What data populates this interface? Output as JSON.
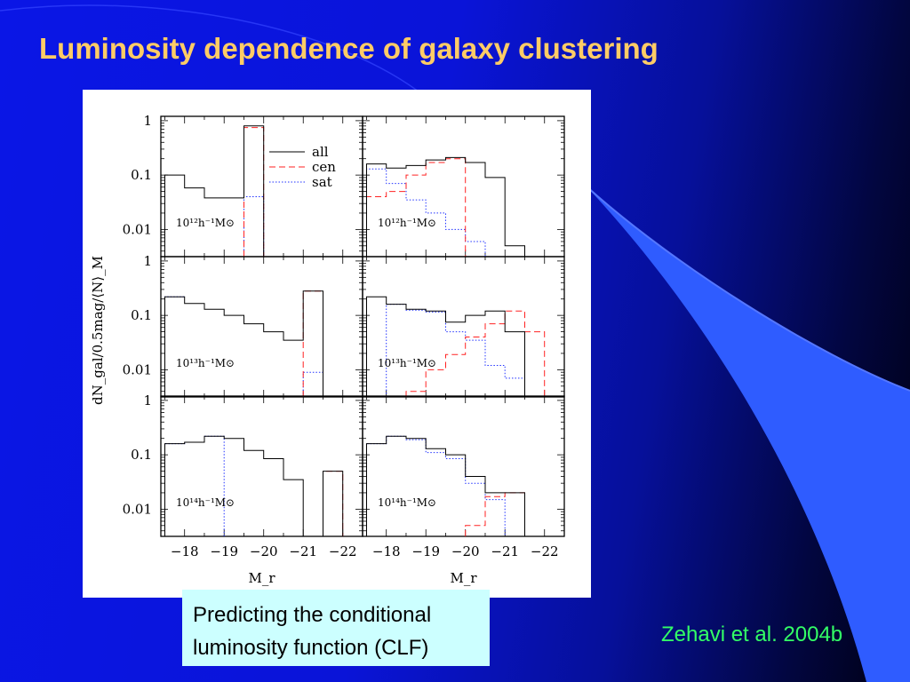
{
  "slide": {
    "title": "Luminosity dependence of galaxy clustering",
    "caption_lines": [
      "Predicting the conditional",
      "luminosity function (CLF)"
    ],
    "citation": "Zehavi et al. 2004b",
    "colors": {
      "title": "#ffcc66",
      "citation": "#33ff66",
      "caption_bg": "#ccffff",
      "background_left": "#0a16e6",
      "background_right": "#000010",
      "decor_band": "#3366ff"
    }
  },
  "chart_data": {
    "type": "histogram-grid",
    "y_axis_title": "dN_gal/0.5mag/⟨N⟩_M",
    "x_axis_title": "M_r",
    "x_ticks": [
      "−18",
      "−19",
      "−20",
      "−21",
      "−22"
    ],
    "y_ticks": [
      "1",
      "0.1",
      "0.01"
    ],
    "legend": [
      {
        "label": "all",
        "style": "solid",
        "color": "#000000"
      },
      {
        "label": "cen",
        "style": "dashed",
        "color": "#ff2222"
      },
      {
        "label": "sat",
        "style": "dotted",
        "color": "#2233ff"
      }
    ],
    "x_range": [
      -17.4,
      -22.5
    ],
    "y_range_log10": [
      -2.5,
      0.08
    ],
    "panels": [
      {
        "mass": "10¹²h⁻¹M⊙",
        "all": [
          [
            -17.5,
            -18,
            0.1
          ],
          [
            -18,
            -18.5,
            0.058
          ],
          [
            -18.5,
            -19,
            0.038
          ],
          [
            -19,
            -19.5,
            0.038
          ],
          [
            -19.5,
            -20,
            0.8
          ]
        ],
        "cen": [
          [
            -19.5,
            -20,
            0.75
          ]
        ],
        "sat": [
          [
            -19.5,
            -20,
            0.04
          ]
        ]
      },
      {
        "mass": "10¹²h⁻¹M⊙",
        "all": [
          [
            -17.5,
            -18,
            0.16
          ],
          [
            -18,
            -18.5,
            0.135
          ],
          [
            -18.5,
            -19,
            0.15
          ],
          [
            -19,
            -19.5,
            0.19
          ],
          [
            -19.5,
            -20,
            0.21
          ],
          [
            -20,
            -20.5,
            0.17
          ],
          [
            -20.5,
            -21,
            0.09
          ],
          [
            -21,
            -21.5,
            0.005
          ]
        ],
        "cen": [
          [
            -17.5,
            -18,
            0.04
          ],
          [
            -18,
            -18.5,
            0.05
          ],
          [
            -18.5,
            -19,
            0.1
          ],
          [
            -19,
            -19.5,
            0.17
          ],
          [
            -19.5,
            -20,
            0.2
          ]
        ],
        "sat": [
          [
            -17.5,
            -18,
            0.13
          ],
          [
            -18,
            -18.5,
            0.07
          ],
          [
            -18.5,
            -19,
            0.035
          ],
          [
            -19,
            -19.5,
            0.02
          ],
          [
            -19.5,
            -20,
            0.01
          ],
          [
            -20,
            -20.5,
            0.006
          ]
        ]
      },
      {
        "mass": "10¹³h⁻¹M⊙",
        "all": [
          [
            -17.5,
            -18,
            0.22
          ],
          [
            -18,
            -18.5,
            0.165
          ],
          [
            -18.5,
            -19,
            0.13
          ],
          [
            -19,
            -19.5,
            0.1
          ],
          [
            -19.5,
            -20,
            0.07
          ],
          [
            -20,
            -20.5,
            0.05
          ],
          [
            -20.5,
            -21,
            0.035
          ],
          [
            -21,
            -21.5,
            0.28
          ]
        ],
        "cen": [
          [
            -21,
            -21.5,
            0.28
          ]
        ],
        "sat": [
          [
            -17.5,
            -18,
            0.22
          ],
          [
            -21,
            -21.5,
            0.009
          ]
        ]
      },
      {
        "mass": "10¹³h⁻¹M⊙",
        "all": [
          [
            -17.5,
            -18,
            0.22
          ],
          [
            -18,
            -18.5,
            0.16
          ],
          [
            -18.5,
            -19,
            0.13
          ],
          [
            -19,
            -19.5,
            0.12
          ],
          [
            -19.5,
            -20,
            0.075
          ],
          [
            -20,
            -20.5,
            0.1
          ],
          [
            -20.5,
            -21,
            0.12
          ],
          [
            -21,
            -21.5,
            0.05
          ]
        ],
        "cen": [
          [
            -18.5,
            -19,
            0.004
          ],
          [
            -19,
            -19.5,
            0.01
          ],
          [
            -19.5,
            -20,
            0.019
          ],
          [
            -20,
            -20.5,
            0.04
          ],
          [
            -20.5,
            -21,
            0.07
          ],
          [
            -21,
            -21.5,
            0.12
          ],
          [
            -21.5,
            -22,
            0.05
          ]
        ],
        "sat": [
          [
            -18,
            -18.5,
            0.16
          ],
          [
            -18.5,
            -19,
            0.125
          ],
          [
            -19,
            -19.5,
            0.115
          ],
          [
            -19.5,
            -20,
            0.05
          ],
          [
            -20,
            -20.5,
            0.035
          ],
          [
            -20.5,
            -21,
            0.012
          ],
          [
            -21,
            -21.5,
            0.007
          ]
        ]
      },
      {
        "mass": "10¹⁴h⁻¹M⊙",
        "all": [
          [
            -17.5,
            -18,
            0.16
          ],
          [
            -18,
            -18.5,
            0.17
          ],
          [
            -18.5,
            -19,
            0.22
          ],
          [
            -19,
            -19.5,
            0.2
          ],
          [
            -19.5,
            -20,
            0.12
          ],
          [
            -20,
            -20.5,
            0.085
          ],
          [
            -20.5,
            -21,
            0.035
          ],
          [
            -21,
            -21.5,
            0.003
          ],
          [
            -21.5,
            -22,
            0.05
          ]
        ],
        "cen": [
          [
            -21.5,
            -22,
            0.05
          ]
        ],
        "sat": [
          [
            -17.5,
            -18,
            0.16
          ],
          [
            -18,
            -18.5,
            0.17
          ],
          [
            -18.5,
            -19,
            0.22
          ]
        ]
      },
      {
        "mass": "10¹⁴h⁻¹M⊙",
        "all": [
          [
            -17.5,
            -18,
            0.16
          ],
          [
            -18,
            -18.5,
            0.22
          ],
          [
            -18.5,
            -19,
            0.2
          ],
          [
            -19,
            -19.5,
            0.13
          ],
          [
            -19.5,
            -20,
            0.1
          ],
          [
            -20,
            -20.5,
            0.04
          ],
          [
            -20.5,
            -21,
            0.02
          ],
          [
            -21,
            -21.5,
            0.02
          ]
        ],
        "cen": [
          [
            -20,
            -20.5,
            0.005
          ],
          [
            -20.5,
            -21,
            0.017
          ],
          [
            -21,
            -21.5,
            0.02
          ]
        ],
        "sat": [
          [
            -17.5,
            -18,
            0.16
          ],
          [
            -18,
            -18.5,
            0.22
          ],
          [
            -18.5,
            -19,
            0.19
          ],
          [
            -19,
            -19.5,
            0.11
          ],
          [
            -19.5,
            -20,
            0.085
          ],
          [
            -20,
            -20.5,
            0.03
          ],
          [
            -20.5,
            -21,
            0.015
          ]
        ]
      }
    ]
  }
}
